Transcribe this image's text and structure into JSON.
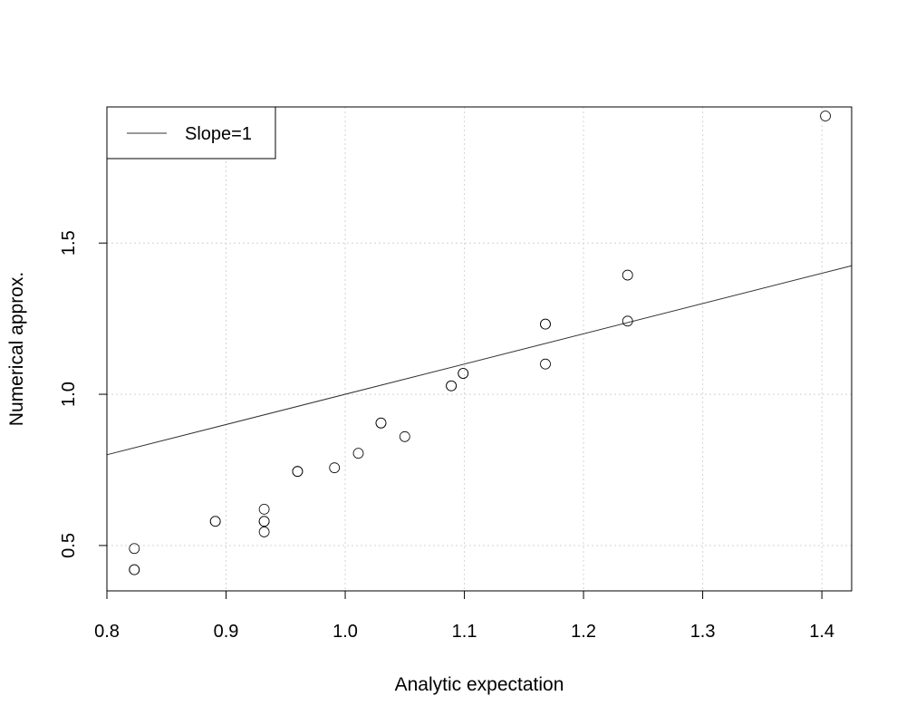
{
  "chart_data": {
    "type": "scatter",
    "title": "",
    "xlabel": "Analytic expectation",
    "ylabel": "Numerical approx.",
    "xlim": [
      0.8,
      1.425
    ],
    "ylim": [
      0.35,
      1.95
    ],
    "xticks": [
      0.8,
      0.9,
      1.0,
      1.1,
      1.2,
      1.3,
      1.4
    ],
    "xtick_labels": [
      "0.8",
      "0.9",
      "1.0",
      "1.1",
      "1.2",
      "1.3",
      "1.4"
    ],
    "yticks": [
      0.5,
      1.0,
      1.5
    ],
    "ytick_labels": [
      "0.5",
      "1.0",
      "1.5"
    ],
    "grid": true,
    "legend": {
      "position": "top-left",
      "entries": [
        {
          "label": "Slope=1",
          "symbol": "line"
        }
      ]
    },
    "reference_line": {
      "label": "Slope=1",
      "slope": 1,
      "intercept": 0
    },
    "series": [
      {
        "marker": "open-circle",
        "points": [
          [
            0.823,
            0.42
          ],
          [
            0.823,
            0.42
          ],
          [
            0.823,
            0.49
          ],
          [
            0.891,
            0.58
          ],
          [
            0.891,
            0.58
          ],
          [
            0.932,
            0.545
          ],
          [
            0.932,
            0.58
          ],
          [
            0.932,
            0.58
          ],
          [
            0.932,
            0.62
          ],
          [
            0.96,
            0.745
          ],
          [
            0.96,
            0.745
          ],
          [
            0.991,
            0.757
          ],
          [
            1.011,
            0.805
          ],
          [
            1.03,
            0.905
          ],
          [
            1.03,
            0.905
          ],
          [
            1.05,
            0.86
          ],
          [
            1.089,
            1.028
          ],
          [
            1.089,
            1.028
          ],
          [
            1.099,
            1.069
          ],
          [
            1.099,
            1.069
          ],
          [
            1.168,
            1.1
          ],
          [
            1.168,
            1.232
          ],
          [
            1.168,
            1.232
          ],
          [
            1.237,
            1.242
          ],
          [
            1.237,
            1.394
          ],
          [
            1.403,
            1.92
          ]
        ]
      }
    ]
  }
}
